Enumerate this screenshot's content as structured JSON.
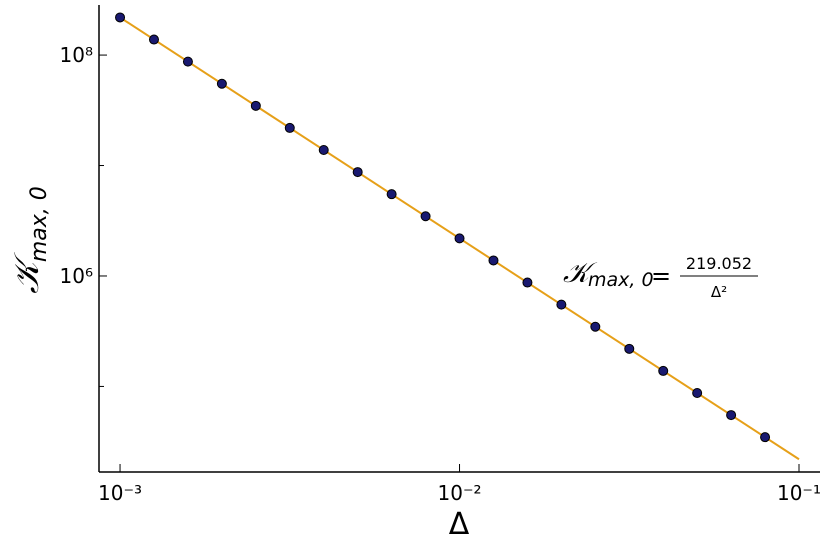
{
  "chart_data": {
    "type": "scatter",
    "xlabel": "Δ",
    "ylabel": {
      "symbol": "𝒦",
      "subscript": "max, 0"
    },
    "annotation": {
      "symbol": "𝒦",
      "subscript": "max, 0",
      "equals": "=",
      "numerator": "219.052",
      "denominator": "Δ²"
    },
    "xscale": "log",
    "yscale": "log",
    "xlim": [
      0.000867,
      0.1153
    ],
    "ylim": [
      16800,
      284000000
    ],
    "xticks": [
      {
        "value": 0.001,
        "label": "10⁻³"
      },
      {
        "value": 0.01,
        "label": "10⁻²"
      },
      {
        "value": 0.1,
        "label": "10⁻¹"
      }
    ],
    "yticks": [
      {
        "value": 1000000,
        "label": "10⁶"
      },
      {
        "value": 100000000,
        "label": "10⁸"
      }
    ],
    "minor_yticks": [
      100000,
      10000000
    ],
    "series": [
      {
        "mode": "markers",
        "color": "#191970",
        "edgecolor": "#000000",
        "x": [
          0.001,
          0.0012589,
          0.0015849,
          0.0019953,
          0.0025119,
          0.0031623,
          0.0039811,
          0.0050119,
          0.0063096,
          0.0079433,
          0.01,
          0.012589,
          0.015849,
          0.019953,
          0.025119,
          0.031623,
          0.039811,
          0.050119,
          0.063096,
          0.079433
        ],
        "values": [
          219052000,
          138213000,
          87206000,
          55023000,
          34717000,
          21905200,
          13821300,
          8720600,
          5502300,
          3471700,
          2190520,
          1382130,
          872060,
          550230,
          347170,
          219052,
          138213,
          87206,
          55023,
          34717
        ]
      },
      {
        "mode": "line",
        "color": "#e6a019",
        "x": [
          0.001,
          0.1
        ],
        "values": [
          219052000,
          21905.2
        ]
      }
    ]
  }
}
